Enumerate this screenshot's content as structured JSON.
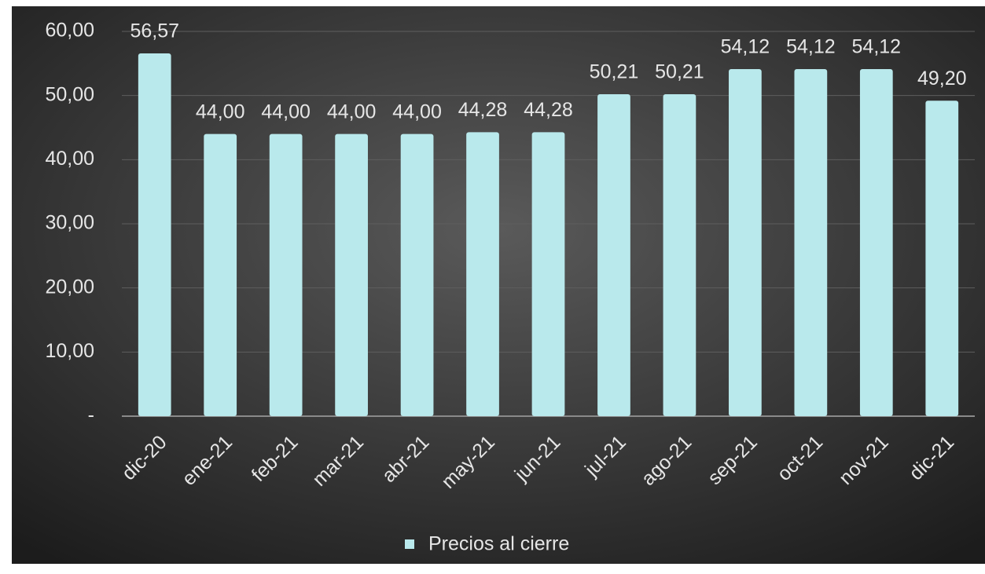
{
  "chart_data": {
    "type": "bar",
    "categories": [
      "dic-20",
      "ene-21",
      "feb-21",
      "mar-21",
      "abr-21",
      "may-21",
      "jun-21",
      "jul-21",
      "ago-21",
      "sep-21",
      "oct-21",
      "nov-21",
      "dic-21"
    ],
    "series": [
      {
        "name": "Precios al cierre",
        "color": "#b9e9ec",
        "values": [
          56.57,
          44.0,
          44.0,
          44.0,
          44.0,
          44.28,
          44.28,
          50.21,
          50.21,
          54.12,
          54.12,
          54.12,
          49.2
        ],
        "value_labels": [
          "56,57",
          "44,00",
          "44,00",
          "44,00",
          "44,00",
          "44,28",
          "44,28",
          "50,21",
          "50,21",
          "54,12",
          "54,12",
          "54,12",
          "49,20"
        ]
      }
    ],
    "ylim": [
      0,
      60
    ],
    "yticks": [
      {
        "value": 0,
        "label": "-"
      },
      {
        "value": 10,
        "label": "10,00"
      },
      {
        "value": 20,
        "label": "20,00"
      },
      {
        "value": 30,
        "label": "30,00"
      },
      {
        "value": 40,
        "label": "40,00"
      },
      {
        "value": 50,
        "label": "50,00"
      },
      {
        "value": 60,
        "label": "60,00"
      }
    ],
    "grid": true,
    "legend": "bottom"
  }
}
